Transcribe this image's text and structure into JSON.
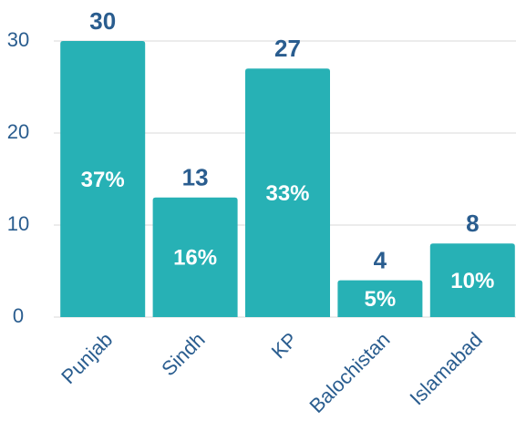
{
  "chart_data": {
    "type": "bar",
    "categories": [
      "Punjab",
      "Sindh",
      "KP",
      "Balochistan",
      "Islamabad"
    ],
    "values": [
      30,
      13,
      27,
      4,
      8
    ],
    "percent_labels": [
      "37%",
      "16%",
      "33%",
      "5%",
      "10%"
    ],
    "color": "#27b1b5",
    "ylim": [
      0,
      30
    ],
    "yticks": [
      0,
      10,
      20,
      30
    ],
    "grid": true
  }
}
